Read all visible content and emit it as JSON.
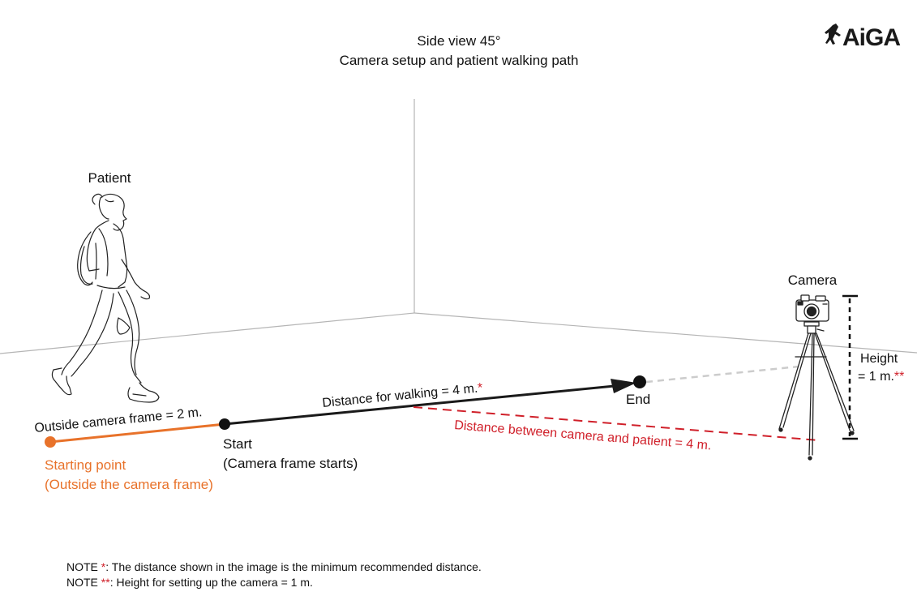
{
  "title": {
    "line1": "Side view 45°",
    "line2": "Camera setup and patient walking path"
  },
  "logo": {
    "text": "AiGA"
  },
  "labels": {
    "patient": "Patient",
    "camera": "Camera",
    "height_line1": "Height",
    "height_line2": "= 1 m.",
    "height_mark": "**",
    "outside_frame": "Outside camera frame = 2 m.",
    "walking_distance": "Distance for walking = 4 m.",
    "walking_mark": "*",
    "camera_distance": "Distance between camera and patient = 4 m.",
    "end": "End",
    "start_line1": "Start",
    "start_line2": "(Camera frame starts)",
    "starting_line1": "Starting point",
    "starting_line2": "(Outside the camera frame)"
  },
  "notes": [
    {
      "prefix": "NOTE ",
      "mark": "*",
      "text": ": The distance shown in the image is the minimum recommended distance."
    },
    {
      "prefix": "NOTE ",
      "mark": "**",
      "text": ": Height for setting up the camera = 1 m."
    }
  ],
  "colors": {
    "accent_orange": "#e8722a",
    "accent_red": "#d0202a",
    "path_black": "#1a1a1a",
    "wall_gray": "#b5b5b5",
    "sightline_gray": "#cccccc"
  }
}
